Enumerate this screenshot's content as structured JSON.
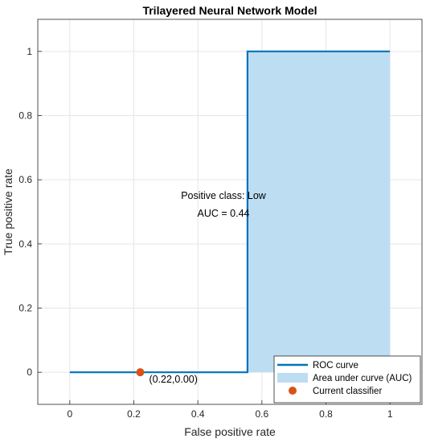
{
  "chart_data": {
    "type": "area",
    "title": "Trilayered Neural Network Model",
    "xlabel": "False positive rate",
    "ylabel": "True positive rate",
    "xlim": [
      -0.1,
      1.1
    ],
    "ylim": [
      -0.1,
      1.1
    ],
    "xticks": [
      0,
      0.2,
      0.4,
      0.6,
      0.8,
      1
    ],
    "yticks": [
      0,
      0.2,
      0.4,
      0.6,
      0.8,
      1
    ],
    "xtick_labels": [
      "0",
      "0.2",
      "0.4",
      "0.6",
      "0.8",
      "1"
    ],
    "ytick_labels": [
      "0",
      "0.2",
      "0.4",
      "0.6",
      "0.8",
      "1"
    ],
    "grid": true,
    "series": [
      {
        "name": "ROC curve",
        "kind": "line",
        "color": "#0072BD",
        "x": [
          0,
          0.555,
          0.555,
          1
        ],
        "y": [
          0,
          0,
          1,
          1
        ]
      },
      {
        "name": "Area under curve (AUC)",
        "kind": "area",
        "color": "#BDDDF2",
        "x": [
          0.555,
          0.555,
          1,
          1
        ],
        "y": [
          0,
          1,
          1,
          0
        ]
      },
      {
        "name": "Current classifier",
        "kind": "point",
        "color": "#D95319",
        "x": [
          0.22
        ],
        "y": [
          0
        ]
      }
    ],
    "annotations": {
      "class_text": "Positive class: Low",
      "auc_text": "AUC = 0.44",
      "point_label": "(0.22,0.00)",
      "text_x": 0.48,
      "class_y": 0.55,
      "auc_y": 0.495
    },
    "legend": {
      "position": "bottom-right",
      "items": [
        "ROC curve",
        "Area under curve (AUC)",
        "Current classifier"
      ]
    }
  }
}
